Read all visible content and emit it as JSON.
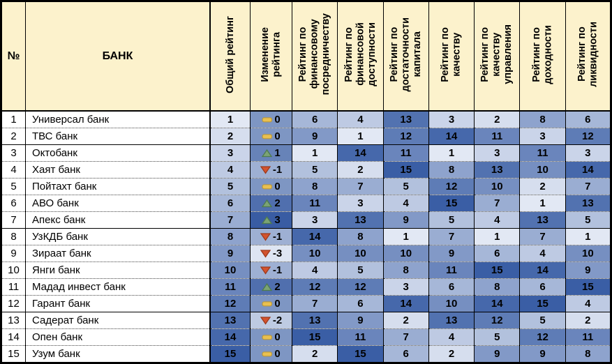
{
  "chart_data": {
    "type": "table",
    "title": "",
    "header_bg": "#FCF2CC",
    "row_bg": "#FFFFFF",
    "text_color": "#000000",
    "rating_scale": {
      "min": 1,
      "max": 15,
      "min_color": "#E2E8F4",
      "max_color": "#3A5EA5"
    },
    "change_scale": {
      "min": -3,
      "mid": 0,
      "max": 3,
      "min_color": "#DEE5F2",
      "mid_color": "#7E96C3",
      "max_color": "#395CA3"
    },
    "icons": {
      "up": {
        "name": "triangle-up-icon",
        "fill": "#7BA374",
        "stroke": "#4D7A50"
      },
      "flat": {
        "name": "dash-icon",
        "fill": "#E9C050",
        "stroke": "#B6973F"
      },
      "down": {
        "name": "triangle-down-icon",
        "fill": "#D3532E",
        "stroke": "#9E3A1C"
      }
    },
    "group_separators_after_rows": [
      2,
      7,
      12
    ],
    "columns": [
      {
        "id": "num",
        "label": "№",
        "orientation": "horizontal"
      },
      {
        "id": "bank",
        "label": "БАНК",
        "orientation": "horizontal"
      },
      {
        "id": "overall",
        "label": "Общий рейтинг",
        "orientation": "vertical"
      },
      {
        "id": "change",
        "label": "Изменение\nрейтинга",
        "orientation": "vertical"
      },
      {
        "id": "fin-intermediation",
        "label": "Рейтинг по\nфинансовому\nпосредничеству",
        "orientation": "vertical"
      },
      {
        "id": "fin-access",
        "label": "Рейтинг по\nфинансовой\nдоступности",
        "orientation": "vertical"
      },
      {
        "id": "capital-adequacy",
        "label": "Рейтинг по\nдостаточности\nкапитала",
        "orientation": "vertical"
      },
      {
        "id": "quality",
        "label": "Рейтинг по\nкачеству",
        "orientation": "vertical"
      },
      {
        "id": "management-quality",
        "label": "Рейтинг по\nкачеству\nуправления",
        "orientation": "vertical"
      },
      {
        "id": "profitability",
        "label": "Рейтинг по\nдоходности",
        "orientation": "vertical"
      },
      {
        "id": "liquidity",
        "label": "Рейтинг по\nликвидности",
        "orientation": "vertical"
      }
    ],
    "rows": [
      {
        "num": 1,
        "bank": "Универсал банк",
        "overall": 1,
        "change": 0,
        "ratings": [
          6,
          4,
          13,
          3,
          2,
          8,
          6
        ]
      },
      {
        "num": 2,
        "bank": "ТВС банк",
        "overall": 2,
        "change": 0,
        "ratings": [
          9,
          1,
          12,
          14,
          11,
          3,
          12
        ]
      },
      {
        "num": 3,
        "bank": "Октобанк",
        "overall": 3,
        "change": 1,
        "ratings": [
          1,
          14,
          11,
          1,
          3,
          11,
          3
        ]
      },
      {
        "num": 4,
        "bank": "Хаят банк",
        "overall": 4,
        "change": -1,
        "ratings": [
          5,
          2,
          15,
          8,
          13,
          10,
          14
        ]
      },
      {
        "num": 5,
        "bank": "Пойтахт банк",
        "overall": 5,
        "change": 0,
        "ratings": [
          8,
          7,
          5,
          12,
          10,
          2,
          7
        ]
      },
      {
        "num": 6,
        "bank": "АВО банк",
        "overall": 6,
        "change": 2,
        "ratings": [
          11,
          3,
          4,
          15,
          7,
          1,
          13
        ]
      },
      {
        "num": 7,
        "bank": "Апекс банк",
        "overall": 7,
        "change": 3,
        "ratings": [
          3,
          13,
          9,
          5,
          4,
          13,
          5
        ]
      },
      {
        "num": 8,
        "bank": "УзКДБ банк",
        "overall": 8,
        "change": -1,
        "ratings": [
          14,
          8,
          1,
          7,
          1,
          7,
          1
        ]
      },
      {
        "num": 9,
        "bank": "Зираат банк",
        "overall": 9,
        "change": -3,
        "ratings": [
          10,
          10,
          10,
          9,
          6,
          4,
          10
        ]
      },
      {
        "num": 10,
        "bank": "Янги банк",
        "overall": 10,
        "change": -1,
        "ratings": [
          4,
          5,
          8,
          11,
          15,
          14,
          9
        ]
      },
      {
        "num": 11,
        "bank": "Мадад инвест банк",
        "overall": 11,
        "change": 2,
        "ratings": [
          12,
          12,
          3,
          6,
          8,
          6,
          15
        ]
      },
      {
        "num": 12,
        "bank": "Гарант банк",
        "overall": 12,
        "change": 0,
        "ratings": [
          7,
          6,
          14,
          10,
          14,
          15,
          4
        ]
      },
      {
        "num": 13,
        "bank": "Садерат банк",
        "overall": 13,
        "change": -2,
        "ratings": [
          13,
          9,
          2,
          13,
          12,
          5,
          2
        ]
      },
      {
        "num": 14,
        "bank": "Опен банк",
        "overall": 14,
        "change": 0,
        "ratings": [
          15,
          11,
          7,
          4,
          5,
          12,
          11
        ]
      },
      {
        "num": 15,
        "bank": "Узум банк",
        "overall": 15,
        "change": 0,
        "ratings": [
          2,
          15,
          6,
          2,
          9,
          9,
          8
        ]
      }
    ]
  }
}
